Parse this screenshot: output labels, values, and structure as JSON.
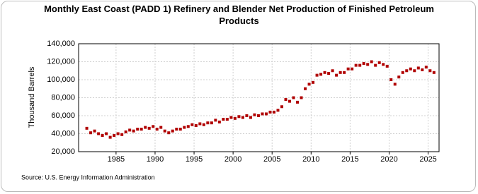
{
  "chart_data": {
    "type": "scatter",
    "title": "Monthly East Coast (PADD 1) Refinery and Blender Net Production of Finished Petroleum Products",
    "y_label": "Thousand Barrels",
    "source": "Source: U.S. Energy Information Administration",
    "color": "#b00000",
    "grid": true,
    "xlim": [
      1980.2,
      2026.4
    ],
    "ylim": [
      20000,
      140000
    ],
    "xticks": [
      1985,
      1990,
      1995,
      2000,
      2005,
      2010,
      2015,
      2020,
      2025
    ],
    "yticks": [
      {
        "value": 20000,
        "label": "20,000"
      },
      {
        "value": 40000,
        "label": "40,000"
      },
      {
        "value": 60000,
        "label": "60,000"
      },
      {
        "value": 80000,
        "label": "80,000"
      },
      {
        "value": 100000,
        "label": "100,000"
      },
      {
        "value": 120000,
        "label": "120,000"
      },
      {
        "value": 140000,
        "label": "140,000"
      }
    ],
    "series": [
      {
        "name": "East Coast (PADD 1) Refinery and Blender Net Production of Finished Petroleum Products",
        "x": [
          1981.25,
          1981.75,
          1982.25,
          1982.75,
          1983.25,
          1983.75,
          1984.25,
          1984.75,
          1985.25,
          1985.75,
          1986.25,
          1986.75,
          1987.25,
          1987.75,
          1988.25,
          1988.75,
          1989.25,
          1989.75,
          1990.25,
          1990.75,
          1991.25,
          1991.75,
          1992.25,
          1992.75,
          1993.25,
          1993.75,
          1994.25,
          1994.75,
          1995.25,
          1995.75,
          1996.25,
          1996.75,
          1997.25,
          1997.75,
          1998.25,
          1998.75,
          1999.25,
          1999.75,
          2000.25,
          2000.75,
          2001.25,
          2001.75,
          2002.25,
          2002.75,
          2003.25,
          2003.75,
          2004.25,
          2004.75,
          2005.25,
          2005.75,
          2006.25,
          2006.75,
          2007.25,
          2007.75,
          2008.25,
          2008.75,
          2009.25,
          2009.75,
          2010.25,
          2010.75,
          2011.25,
          2011.75,
          2012.25,
          2012.75,
          2013.25,
          2013.75,
          2014.25,
          2014.75,
          2015.25,
          2015.75,
          2016.25,
          2016.75,
          2017.25,
          2017.75,
          2018.25,
          2018.75,
          2019.25,
          2019.75,
          2020.25,
          2020.75,
          2021.25,
          2021.75,
          2022.25,
          2022.75,
          2023.25,
          2023.75,
          2024.25,
          2024.75,
          2025.25,
          2025.75
        ],
        "values": [
          46000,
          41000,
          43000,
          40000,
          38000,
          40000,
          36000,
          38000,
          40000,
          39000,
          42000,
          44000,
          43000,
          45000,
          45000,
          47000,
          46000,
          48000,
          45000,
          47000,
          43000,
          41000,
          43000,
          45000,
          45000,
          47000,
          48000,
          50000,
          49000,
          51000,
          50000,
          52000,
          52000,
          55000,
          53000,
          56000,
          56000,
          58000,
          57000,
          59000,
          58000,
          60000,
          58000,
          61000,
          60000,
          62000,
          62000,
          64000,
          64000,
          66000,
          70000,
          78000,
          76000,
          80000,
          75000,
          80000,
          90000,
          95000,
          97000,
          105000,
          106000,
          108000,
          107000,
          110000,
          105000,
          108000,
          108000,
          112000,
          112000,
          116000,
          116000,
          118000,
          117000,
          120000,
          116000,
          119000,
          117000,
          115000,
          100000,
          95000,
          103000,
          108000,
          110000,
          112000,
          110000,
          113000,
          111000,
          114000,
          110000,
          108000
        ]
      }
    ]
  }
}
